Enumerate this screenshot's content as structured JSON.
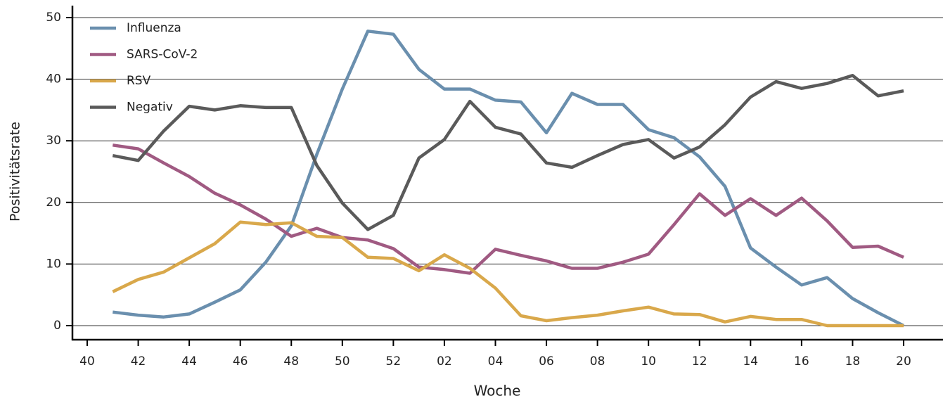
{
  "chart_data": {
    "type": "line",
    "x_label": "Woche",
    "y_label": "Positivitätsrate",
    "categories": [
      "40",
      null,
      "42",
      null,
      "44",
      null,
      "46",
      null,
      "48",
      null,
      "50",
      null,
      "52",
      null,
      "02",
      null,
      "04",
      null,
      "06",
      null,
      "08",
      null,
      "10",
      null,
      "12",
      null,
      "14",
      null,
      "16",
      null,
      "18",
      null,
      "20"
    ],
    "series": [
      {
        "name": "Influenza",
        "color": "#6a8fae",
        "values": [
          null,
          2.2,
          1.7,
          1.4,
          1.9,
          3.8,
          5.8,
          10.3,
          16.2,
          27.8,
          38.4,
          47.8,
          47.3,
          41.6,
          38.4,
          38.4,
          36.6,
          36.3,
          31.3,
          37.7,
          35.9,
          35.9,
          31.8,
          30.5,
          27.4,
          22.6,
          12.6,
          9.5,
          6.6,
          7.8,
          4.4,
          2.1,
          0
        ]
      },
      {
        "name": "SARS-CoV-2",
        "color": "#a05a82",
        "values": [
          null,
          29.3,
          28.7,
          26.4,
          24.2,
          21.5,
          19.6,
          17.3,
          14.5,
          15.8,
          14.3,
          13.9,
          12.5,
          9.5,
          9.1,
          8.5,
          12.4,
          11.4,
          10.5,
          9.3,
          9.3,
          10.3,
          11.6,
          16.4,
          21.4,
          17.9,
          20.6,
          17.9,
          20.7,
          17.0,
          12.7,
          12.9,
          11.1
        ]
      },
      {
        "name": "RSV",
        "color": "#d9a84b",
        "values": [
          null,
          5.5,
          7.5,
          8.7,
          11.0,
          13.3,
          16.8,
          16.4,
          16.7,
          14.5,
          14.3,
          11.1,
          10.9,
          8.9,
          11.5,
          9.3,
          6.1,
          1.6,
          0.8,
          1.3,
          1.7,
          2.4,
          3.0,
          1.9,
          1.8,
          0.6,
          1.5,
          1.0,
          1.0,
          0,
          0,
          0,
          0
        ]
      },
      {
        "name": "Negativ",
        "color": "#5a5a5a",
        "values": [
          null,
          27.6,
          26.8,
          31.6,
          35.6,
          35.0,
          35.7,
          35.4,
          35.4,
          26.0,
          19.9,
          15.6,
          17.9,
          27.2,
          30.2,
          36.4,
          32.2,
          31.1,
          26.4,
          25.7,
          27.6,
          29.4,
          30.2,
          27.2,
          29.0,
          32.6,
          37.1,
          39.6,
          38.5,
          39.3,
          40.6,
          37.3,
          38.1
        ]
      }
    ],
    "ylim": [
      0,
      50
    ],
    "yticks": [
      0,
      10,
      20,
      30,
      40,
      50
    ],
    "grid": true,
    "legend": "top-left"
  }
}
